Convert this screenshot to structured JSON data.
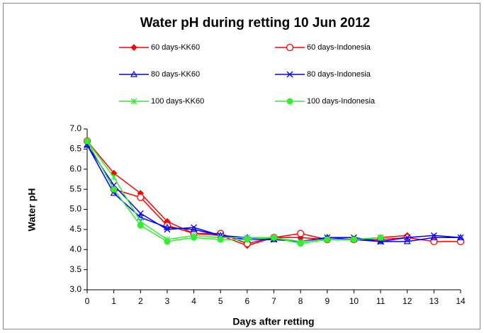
{
  "chart_data": {
    "type": "line",
    "title": "Water pH during retting 10 Jun 2012",
    "x_label": "Days after retting",
    "y_label": "Water pH",
    "x": [
      0,
      1,
      2,
      3,
      4,
      5,
      6,
      7,
      8,
      9,
      10,
      11,
      12,
      13,
      14
    ],
    "xlim": [
      0,
      14
    ],
    "xticks": [
      0,
      1,
      2,
      3,
      4,
      5,
      6,
      7,
      8,
      9,
      10,
      11,
      12,
      13,
      14
    ],
    "ylim": [
      3,
      7
    ],
    "yticks": [
      {
        "value": 3,
        "label": "3.0"
      },
      {
        "value": 3.5,
        "label": "3.5"
      },
      {
        "value": 4,
        "label": "4.0"
      },
      {
        "value": 4.5,
        "label": "4.5"
      },
      {
        "value": 5,
        "label": "5.0"
      },
      {
        "value": 5.5,
        "label": "5.5"
      },
      {
        "value": 6,
        "label": "6.0"
      },
      {
        "value": 6.5,
        "label": "6.5"
      },
      {
        "value": 7,
        "label": "7.0"
      }
    ],
    "series": [
      {
        "name": "60 days-KK60",
        "color": "#ff0000",
        "marker": "diamond",
        "values": [
          6.7,
          5.9,
          5.4,
          4.7,
          4.4,
          4.35,
          4.1,
          4.3,
          4.3,
          4.25,
          4.25,
          4.3,
          4.35,
          null,
          null
        ]
      },
      {
        "name": "60 days-Indonesia",
        "color": "#ff0000",
        "marker": "open-circle",
        "values": [
          6.7,
          5.5,
          5.3,
          4.6,
          4.4,
          4.4,
          4.15,
          4.3,
          4.4,
          4.25,
          4.25,
          4.25,
          4.3,
          4.2,
          4.2
        ]
      },
      {
        "name": "80 days-KK60",
        "color": "#0000ff",
        "marker": "triangle",
        "values": [
          6.6,
          5.4,
          4.8,
          4.55,
          4.5,
          4.35,
          4.3,
          4.25,
          4.2,
          4.3,
          4.25,
          4.2,
          4.2,
          4.3,
          4.3
        ]
      },
      {
        "name": "80 days-Indonesia",
        "color": "#0000ff",
        "marker": "cross",
        "values": [
          6.6,
          5.6,
          4.9,
          4.5,
          4.55,
          4.35,
          4.25,
          4.25,
          4.2,
          4.3,
          4.3,
          4.2,
          4.3,
          4.35,
          4.3
        ]
      },
      {
        "name": "100 days-KK60",
        "color": "#33ee33",
        "marker": "star",
        "values": [
          6.7,
          5.8,
          4.7,
          4.25,
          4.35,
          4.3,
          4.3,
          4.3,
          4.2,
          4.25,
          4.25,
          4.3,
          null,
          null,
          null
        ]
      },
      {
        "name": "100 days-Indonesia",
        "color": "#33ee33",
        "marker": "dot",
        "values": [
          6.7,
          5.5,
          4.6,
          4.2,
          4.3,
          4.25,
          4.25,
          4.3,
          4.15,
          4.25,
          4.25,
          4.3,
          null,
          null,
          null
        ]
      }
    ]
  }
}
